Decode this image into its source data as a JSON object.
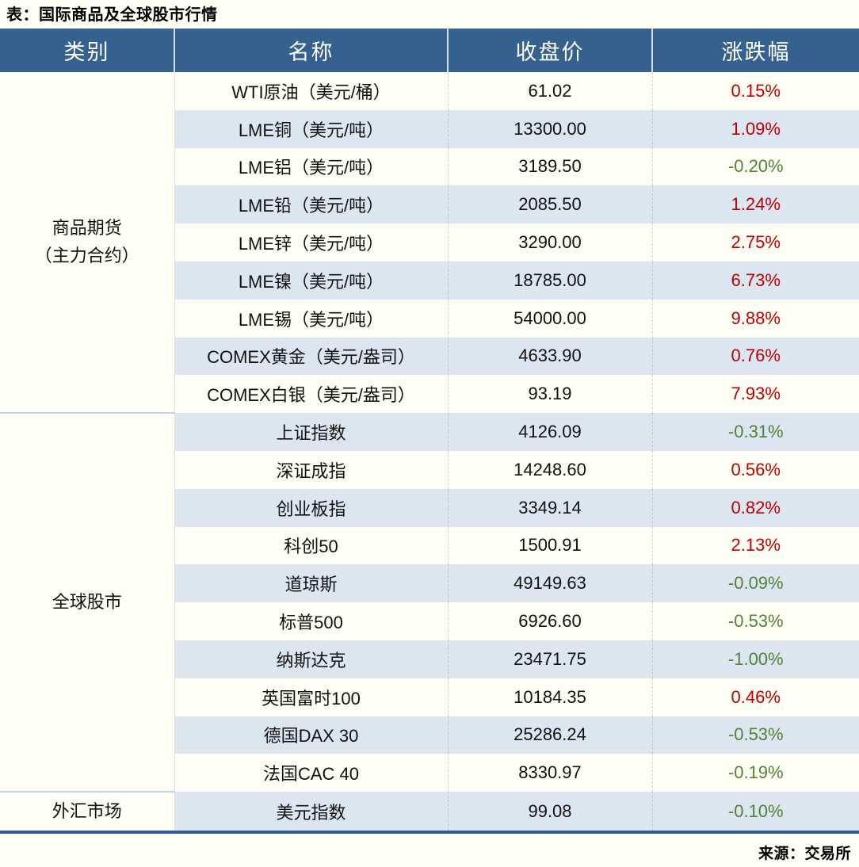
{
  "title": "表：国际商品及全球股市行情",
  "source": "来源：交易所",
  "colors": {
    "header_bg": "#35618F",
    "row_alt_bg": "#DCE6F1",
    "up_red": "#C00000",
    "down_green": "#538135",
    "bottom_border_blue": "#2F5C8F",
    "page_bg": "#FFFEF4"
  },
  "table": {
    "headers": [
      "类别",
      "名称",
      "收盘价",
      "涨跌幅"
    ],
    "sections": [
      {
        "category": "商品期货\n（主力合约）",
        "rows": [
          {
            "name": "WTI原油（美元/桶）",
            "close": "61.02",
            "change": "0.15%",
            "direction": "up"
          },
          {
            "name": "LME铜（美元/吨）",
            "close": "13300.00",
            "change": "1.09%",
            "direction": "up"
          },
          {
            "name": "LME铝（美元/吨）",
            "close": "3189.50",
            "change": "-0.20%",
            "direction": "down"
          },
          {
            "name": "LME铅（美元/吨）",
            "close": "2085.50",
            "change": "1.24%",
            "direction": "up"
          },
          {
            "name": "LME锌（美元/吨）",
            "close": "3290.00",
            "change": "2.75%",
            "direction": "up"
          },
          {
            "name": "LME镍（美元/吨）",
            "close": "18785.00",
            "change": "6.73%",
            "direction": "up"
          },
          {
            "name": "LME锡（美元/吨）",
            "close": "54000.00",
            "change": "9.88%",
            "direction": "up"
          },
          {
            "name": "COMEX黄金（美元/盎司）",
            "close": "4633.90",
            "change": "0.76%",
            "direction": "up"
          },
          {
            "name": "COMEX白银（美元/盎司）",
            "close": "93.19",
            "change": "7.93%",
            "direction": "up"
          }
        ]
      },
      {
        "category": "全球股市",
        "rows": [
          {
            "name": "上证指数",
            "close": "4126.09",
            "change": "-0.31%",
            "direction": "down"
          },
          {
            "name": "深证成指",
            "close": "14248.60",
            "change": "0.56%",
            "direction": "up"
          },
          {
            "name": "创业板指",
            "close": "3349.14",
            "change": "0.82%",
            "direction": "up"
          },
          {
            "name": "科创50",
            "close": "1500.91",
            "change": "2.13%",
            "direction": "up"
          },
          {
            "name": "道琼斯",
            "close": "49149.63",
            "change": "-0.09%",
            "direction": "down"
          },
          {
            "name": "标普500",
            "close": "6926.60",
            "change": "-0.53%",
            "direction": "down"
          },
          {
            "name": "纳斯达克",
            "close": "23471.75",
            "change": "-1.00%",
            "direction": "down"
          },
          {
            "name": "英国富时100",
            "close": "10184.35",
            "change": "0.46%",
            "direction": "up"
          },
          {
            "name": "德国DAX 30",
            "close": "25286.24",
            "change": "-0.53%",
            "direction": "down"
          },
          {
            "name": "法国CAC 40",
            "close": "8330.97",
            "change": "-0.19%",
            "direction": "down"
          }
        ]
      },
      {
        "category": "外汇市场",
        "rows": [
          {
            "name": "美元指数",
            "close": "99.08",
            "change": "-0.10%",
            "direction": "down"
          }
        ]
      }
    ]
  }
}
